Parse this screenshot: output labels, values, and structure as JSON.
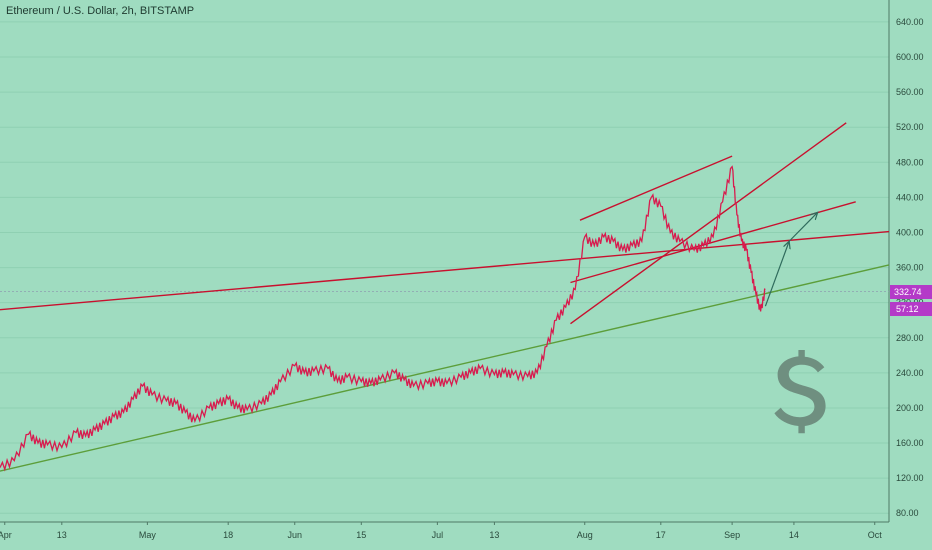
{
  "header": {
    "title": "Ethereum / U.S. Dollar, 2h, BITSTAMP"
  },
  "colors": {
    "background": "#9fdcc0",
    "candle": "#d81b4e",
    "resistance": "#c8102e",
    "support": "#5c9e3a",
    "arrow": "#2f6b5c",
    "dollar": "#6f8f80",
    "price_badge": "#b43ac8"
  },
  "icons": {
    "dollar": "dollar-sign-icon"
  },
  "price_badge": {
    "price": "332.74",
    "countdown": "57:12"
  },
  "chart_data": {
    "type": "line",
    "title": "Ethereum / U.S. Dollar, 2h, BITSTAMP",
    "y_axis_position": "right",
    "ylim": [
      70,
      665
    ],
    "y_ticks": [
      80,
      120,
      160,
      200,
      240,
      280,
      320,
      360,
      400,
      440,
      480,
      520,
      560,
      600,
      640
    ],
    "y_tick_labels": [
      "80.00",
      "120.00",
      "160.00",
      "200.00",
      "240.00",
      "280.00",
      "320.00",
      "360.00",
      "400.00",
      "440.00",
      "480.00",
      "520.00",
      "560.00",
      "600.00",
      "640.00"
    ],
    "x_tick_labels": [
      "Apr",
      "13",
      "May",
      "18",
      "Jun",
      "15",
      "Jul",
      "13",
      "Aug",
      "17",
      "Sep",
      "14",
      "Oct"
    ],
    "x_tick_dates": [
      "2020-04-01",
      "2020-04-13",
      "2020-05-01",
      "2020-05-18",
      "2020-06-01",
      "2020-06-15",
      "2020-07-01",
      "2020-07-13",
      "2020-08-01",
      "2020-08-17",
      "2020-09-01",
      "2020-09-14",
      "2020-10-01"
    ],
    "xlim": [
      "2020-03-31",
      "2020-10-04"
    ],
    "series": [
      {
        "dates": [
          "2020-03-31",
          "2020-04-03",
          "2020-04-06",
          "2020-04-08",
          "2020-04-10",
          "2020-04-13",
          "2020-04-16",
          "2020-04-18",
          "2020-04-20",
          "2020-04-22",
          "2020-04-24",
          "2020-04-26",
          "2020-04-28",
          "2020-04-30",
          "2020-05-02",
          "2020-05-05",
          "2020-05-07",
          "2020-05-09",
          "2020-05-11",
          "2020-05-14",
          "2020-05-16",
          "2020-05-18",
          "2020-05-20",
          "2020-05-22",
          "2020-05-25",
          "2020-05-27",
          "2020-05-29",
          "2020-06-01",
          "2020-06-03",
          "2020-06-05",
          "2020-06-08",
          "2020-06-10",
          "2020-06-12",
          "2020-06-15",
          "2020-06-17",
          "2020-06-19",
          "2020-06-22",
          "2020-06-24",
          "2020-06-26",
          "2020-06-29",
          "2020-07-01",
          "2020-07-03",
          "2020-07-06",
          "2020-07-08",
          "2020-07-10",
          "2020-07-13",
          "2020-07-15",
          "2020-07-17",
          "2020-07-20",
          "2020-07-22",
          "2020-07-24",
          "2020-07-26",
          "2020-07-28",
          "2020-07-30",
          "2020-08-01",
          "2020-08-03",
          "2020-08-05",
          "2020-08-07",
          "2020-08-09",
          "2020-08-11",
          "2020-08-13",
          "2020-08-15",
          "2020-08-17",
          "2020-08-19",
          "2020-08-21",
          "2020-08-24",
          "2020-08-26",
          "2020-08-28",
          "2020-08-30",
          "2020-09-01",
          "2020-09-02",
          "2020-09-03",
          "2020-09-04",
          "2020-09-05",
          "2020-09-06",
          "2020-09-07",
          "2020-09-08"
        ],
        "values": [
          132,
          140,
          170,
          160,
          158,
          155,
          172,
          168,
          175,
          182,
          190,
          195,
          210,
          225,
          215,
          208,
          205,
          195,
          185,
          200,
          205,
          210,
          200,
          198,
          205,
          215,
          230,
          248,
          240,
          242,
          245,
          230,
          235,
          230,
          228,
          232,
          240,
          232,
          225,
          228,
          230,
          228,
          235,
          240,
          245,
          238,
          240,
          238,
          236,
          240,
          270,
          300,
          315,
          335,
          395,
          385,
          395,
          390,
          380,
          385,
          390,
          440,
          430,
          400,
          390,
          380,
          385,
          395,
          435,
          475,
          420,
          390,
          380,
          355,
          330,
          310,
          335
        ]
      }
    ],
    "annotations": [
      {
        "type": "trendline",
        "color": "resistance",
        "from": [
          "2020-03-31",
          312
        ],
        "to": [
          "2020-10-04",
          401
        ]
      },
      {
        "type": "trendline",
        "color": "support",
        "from": [
          "2020-03-31",
          128
        ],
        "to": [
          "2020-10-04",
          363
        ]
      },
      {
        "type": "trendline",
        "color": "resistance",
        "from": [
          "2020-07-29",
          296
        ],
        "to": [
          "2020-09-25",
          525
        ]
      },
      {
        "type": "trendline",
        "color": "resistance",
        "from": [
          "2020-07-31",
          414
        ],
        "to": [
          "2020-09-01",
          487
        ]
      },
      {
        "type": "trendline",
        "color": "resistance",
        "from": [
          "2020-07-29",
          343
        ],
        "to": [
          "2020-09-27",
          435
        ]
      },
      {
        "type": "arrow",
        "color": "arrow",
        "from": [
          "2020-09-08",
          316
        ],
        "to": [
          "2020-09-13",
          390
        ]
      },
      {
        "type": "arrow",
        "color": "arrow",
        "from": [
          "2020-09-13",
          390
        ],
        "to": [
          "2020-09-19",
          423
        ]
      }
    ]
  }
}
